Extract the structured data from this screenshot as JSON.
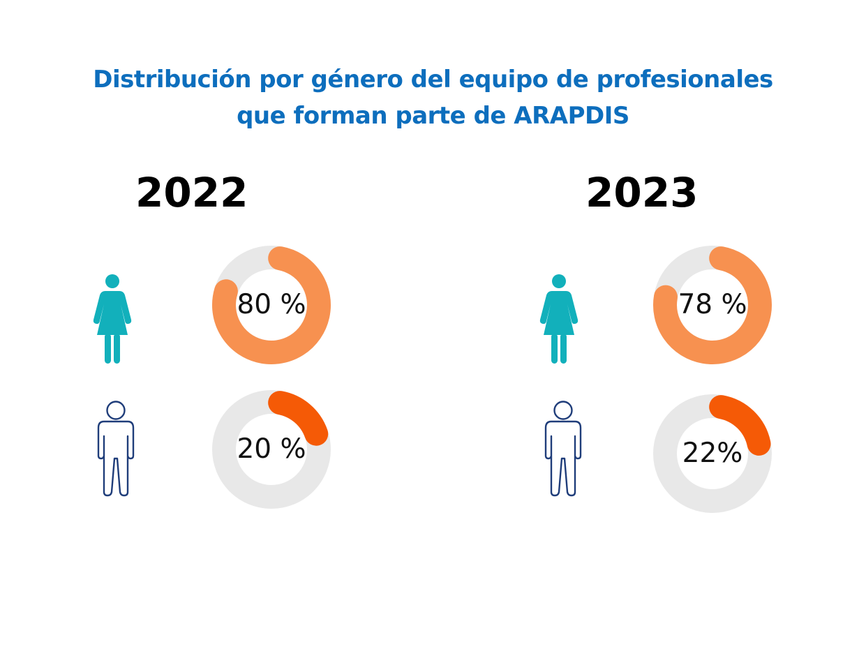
{
  "title": {
    "line1": "Distribución por género del equipo de profesionales",
    "line2": "que forman parte de ARAPDIS"
  },
  "colors": {
    "title": "#0d6ebd",
    "female_icon": "#12b0bb",
    "male_icon": "#1f3d7a",
    "women_arc": "#f79150",
    "men_arc": "#f55a06",
    "track": "#e8e8e8"
  },
  "chart_data": [
    {
      "type": "pie",
      "title": "2022",
      "series": [
        {
          "category": "women",
          "icon": "female-icon",
          "value": 80,
          "label": "80 %"
        },
        {
          "category": "men",
          "icon": "male-icon",
          "value": 20,
          "label": "20 %"
        }
      ]
    },
    {
      "type": "pie",
      "title": "2023",
      "series": [
        {
          "category": "women",
          "icon": "female-icon",
          "value": 78,
          "label": "78 %"
        },
        {
          "category": "men",
          "icon": "male-icon",
          "value": 22,
          "label": "22%"
        }
      ]
    }
  ]
}
